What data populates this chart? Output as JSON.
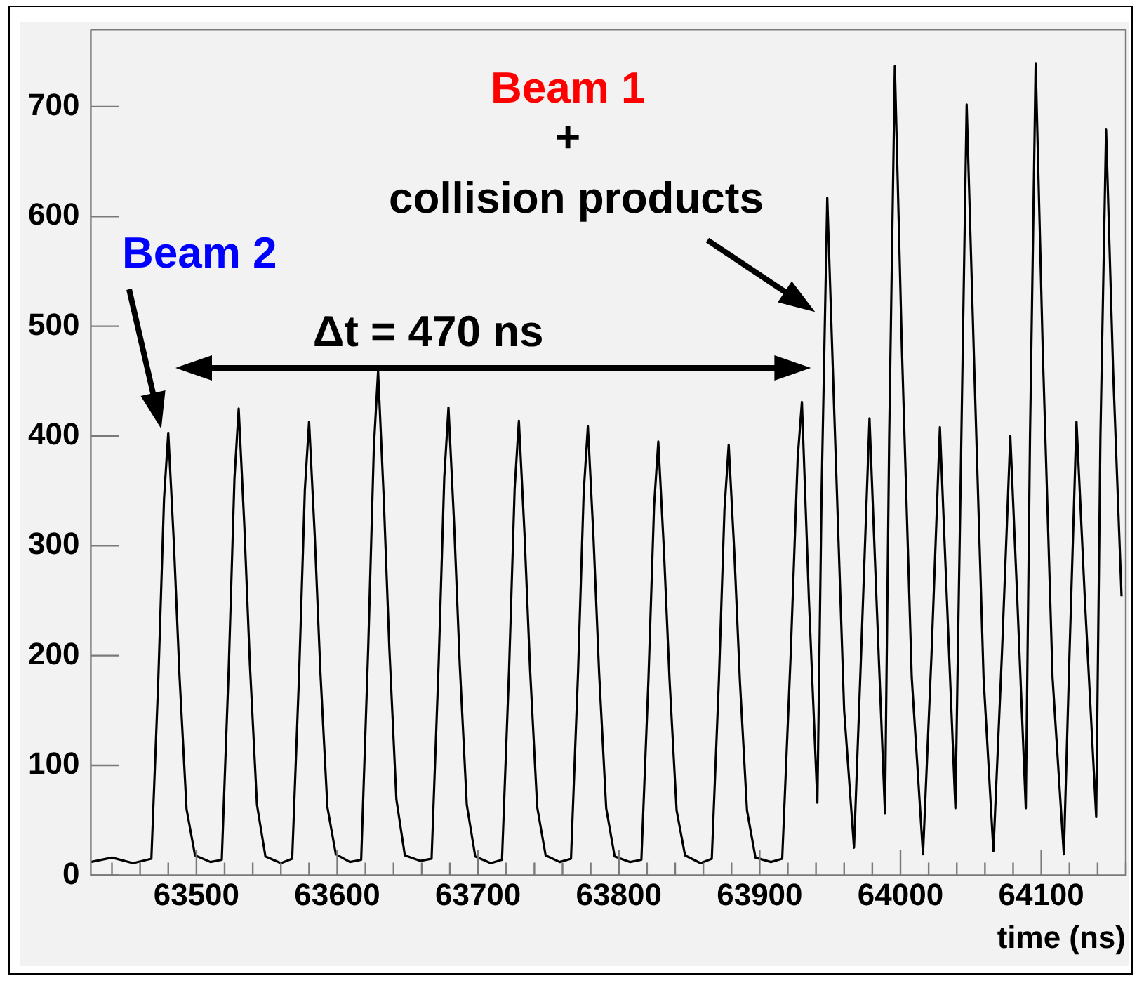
{
  "chart_data": {
    "type": "line",
    "xlabel": "time (ns)",
    "xlim": [
      63425,
      64160
    ],
    "xticks": [
      63500,
      63600,
      63700,
      63800,
      63900,
      64000,
      64100
    ],
    "ylim": [
      0,
      770
    ],
    "yticks": [
      0,
      100,
      200,
      300,
      400,
      500,
      600,
      700
    ],
    "grid": false,
    "legend": false,
    "marker": "none",
    "line_style": "solid",
    "annotations": [
      "Beam 2",
      "Beam 1",
      "+",
      "collision products",
      "Δt = 470 ns"
    ],
    "series": [
      {
        "color": "#000000",
        "x": [
          63425,
          63440,
          63455,
          63468,
          63473,
          63477,
          63480,
          63484,
          63488,
          63493,
          63499,
          63510,
          63518,
          63523,
          63527,
          63530,
          63534,
          63538,
          63543,
          63549,
          63560,
          63568,
          63573,
          63577,
          63580,
          63584,
          63588,
          63593,
          63599,
          63609,
          63617,
          63622,
          63626,
          63629,
          63633,
          63637,
          63642,
          63648,
          63659,
          63667,
          63672,
          63676,
          63679,
          63683,
          63687,
          63692,
          63698,
          63709,
          63717,
          63722,
          63726,
          63729,
          63733,
          63737,
          63742,
          63748,
          63758,
          63766,
          63771,
          63775,
          63778,
          63782,
          63786,
          63791,
          63797,
          63808,
          63816,
          63821,
          63825,
          63828,
          63832,
          63836,
          63841,
          63847,
          63858,
          63866,
          63871,
          63875,
          63878,
          63882,
          63886,
          63891,
          63897,
          63908,
          63916,
          63922,
          63927,
          63930,
          63935,
          63941,
          63944,
          63948,
          63953,
          63960,
          63967,
          63972,
          63978,
          63983,
          63989,
          63992,
          63996,
          64001,
          64008,
          64016,
          64022,
          64028,
          64033,
          64039,
          64043,
          64047,
          64052,
          64059,
          64066,
          64072,
          64078,
          64083,
          64089,
          64092,
          64096,
          64101,
          64108,
          64116,
          64120,
          64125,
          64131,
          64139,
          64142,
          64146,
          64151,
          64157
        ],
        "values": [
          12,
          16,
          11,
          15,
          181,
          343,
          403,
          302,
          181,
          60,
          18,
          12,
          14,
          191,
          361,
          425,
          319,
          191,
          64,
          17,
          11,
          15,
          186,
          351,
          413,
          310,
          186,
          62,
          19,
          12,
          14,
          207,
          390,
          459,
          344,
          207,
          69,
          18,
          13,
          15,
          192,
          362,
          426,
          320,
          192,
          64,
          17,
          11,
          14,
          186,
          352,
          414,
          311,
          186,
          62,
          18,
          12,
          15,
          184,
          348,
          409,
          307,
          184,
          61,
          17,
          12,
          14,
          178,
          336,
          395,
          296,
          178,
          59,
          18,
          11,
          15,
          176,
          333,
          392,
          294,
          176,
          59,
          16,
          12,
          15,
          200,
          380,
          431,
          250,
          66,
          350,
          617,
          420,
          150,
          25,
          200,
          416,
          250,
          56,
          400,
          737,
          480,
          180,
          19,
          200,
          408,
          250,
          61,
          380,
          702,
          480,
          180,
          22,
          200,
          400,
          250,
          61,
          400,
          739,
          480,
          180,
          19,
          200,
          413,
          250,
          53,
          400,
          679,
          460,
          254
        ]
      }
    ]
  }
}
